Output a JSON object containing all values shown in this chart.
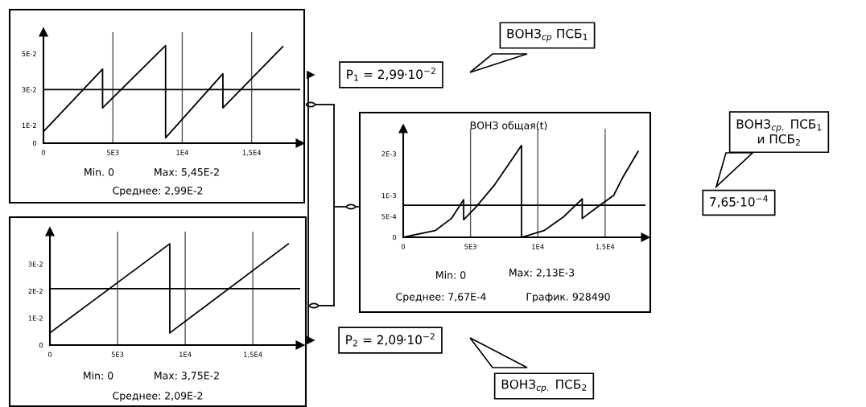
{
  "chart_data": [
    {
      "type": "line",
      "x": [
        0,
        4260,
        4260,
        8800,
        8800,
        12930,
        12930,
        17250
      ],
      "series": [
        {
          "color": "#000000",
          "values": [
            0.0065,
            0.0414,
            0.0197,
            0.0545,
            0.003,
            0.0388,
            0.0197,
            0.054
          ]
        }
      ],
      "xlim": [
        0,
        18500
      ],
      "ylim": [
        0,
        0.062
      ],
      "xticks": [
        0,
        {
          "value": 5000,
          "label": "5E3"
        },
        {
          "value": 10000,
          "label": "1E4"
        },
        {
          "value": 15000,
          "label": "1,5E4"
        }
      ],
      "yticks": [
        0,
        {
          "value": 0.01,
          "label": "1E-2"
        },
        {
          "value": 0.03,
          "label": "3E-2"
        },
        {
          "value": 0.05,
          "label": "5E-2"
        }
      ],
      "grid": "x",
      "ref_lines": [
        {
          "axis": "y",
          "value": 0.0299,
          "color": "#000000"
        }
      ],
      "annotations": [
        "Min. 0",
        "Max: 5,45E-2",
        "Среднее: 2,99E-2",
        "P$_{1}$ = 2,99·10$^{−2}$",
        "ВОНЗ$_{ср}$ ПСБ$_{1}$"
      ]
    },
    {
      "type": "line",
      "x": [
        0,
        8860,
        8860,
        17630
      ],
      "series": [
        {
          "color": "#000000",
          "values": [
            0.0045,
            0.0375,
            0.0045,
            0.0375
          ]
        }
      ],
      "xlim": [
        0,
        18500
      ],
      "ylim": [
        0,
        0.042
      ],
      "xticks": [
        0,
        {
          "value": 5000,
          "label": "5E3"
        },
        {
          "value": 10000,
          "label": "1E4"
        },
        {
          "value": 15000,
          "label": "1,5E4"
        }
      ],
      "yticks": [
        0,
        {
          "value": 0.01,
          "label": "1E-2"
        },
        {
          "value": 0.02,
          "label": "2E-2"
        },
        {
          "value": 0.03,
          "label": "3E-2"
        }
      ],
      "grid": "x",
      "ref_lines": [
        {
          "axis": "y",
          "value": 0.0209,
          "color": "#000000"
        }
      ],
      "annotations": [
        "Min: 0",
        "Max: 3,75E-2",
        "Среднее: 2,09E-2",
        "P$_{2}$ = 2,09·10$^{−2}$",
        "ВОНЗ$_{ср.}$ ПСБ$_{2}$"
      ]
    },
    {
      "type": "line",
      "title": "ВОНЗ общая(t)",
      "x": [
        0,
        2370,
        3580,
        4490,
        4490,
        5370,
        6800,
        8790,
        8790,
        10460,
        11880,
        13300,
        13300,
        14500,
        15630,
        16340,
        17460
      ],
      "series": [
        {
          "color": "#000000",
          "values": [
            0,
            0.00016,
            0.00045,
            0.0009,
            0.00042,
            0.00071,
            0.00126,
            0.0022,
            0,
            0.00016,
            0.00048,
            0.00092,
            0.00045,
            0.00074,
            0.001,
            0.00145,
            0.00206
          ]
        }
      ],
      "xlim": [
        0,
        18000
      ],
      "ylim": [
        0,
        0.0026
      ],
      "xticks": [
        0,
        {
          "value": 5000,
          "label": "5E3"
        },
        {
          "value": 10000,
          "label": "1E4"
        },
        {
          "value": 15000,
          "label": "1,5E4"
        }
      ],
      "yticks": [
        0,
        {
          "value": 0.0005,
          "label": "5E-4"
        },
        {
          "value": 0.001,
          "label": "1E-3"
        },
        {
          "value": 0.002,
          "label": "2E-3"
        }
      ],
      "grid": "x",
      "ref_lines": [
        {
          "axis": "y",
          "value": 0.000767,
          "color": "#000000"
        }
      ],
      "annotations": [
        "Min: 0",
        "Max: 2,13E-3",
        "Среднее: 7,67E-4",
        "График. 928490",
        "ВОНЗ$_{ср.}$ ПСБ$_{1}$\nи ПСБ$_{2}$",
        "7,65·10$^{−4}$"
      ]
    }
  ]
}
